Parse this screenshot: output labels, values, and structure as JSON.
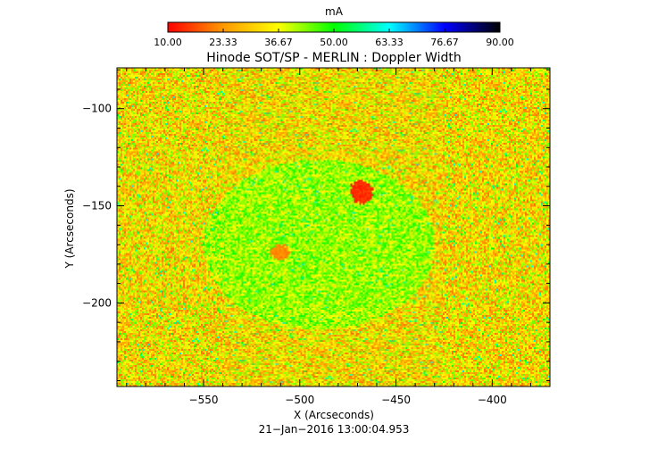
{
  "chart_data": {
    "type": "heatmap",
    "title": "Hinode SOT/SP - MERLIN : Doppler Width",
    "xlabel": "X (Arcseconds)",
    "ylabel": "Y (Arcseconds)",
    "xlim": [
      -595,
      -370
    ],
    "ylim": [
      -243,
      -79
    ],
    "xticks": [
      -550,
      -500,
      -450,
      -400
    ],
    "xtick_labels": [
      "−550",
      "−500",
      "−450",
      "−400"
    ],
    "yticks": [
      -100,
      -150,
      -200
    ],
    "ytick_labels": [
      "−100",
      "−150",
      "−200"
    ],
    "colorbar": {
      "label": "mA",
      "min": 10.0,
      "max": 90.0,
      "ticks": [
        10.0,
        23.33,
        36.67,
        50.0,
        63.33,
        76.67,
        90.0
      ],
      "tick_labels": [
        "10.00",
        "23.33",
        "36.67",
        "50.00",
        "63.33",
        "76.67",
        "90.00"
      ],
      "colors": [
        "#ff0000",
        "#ff9900",
        "#ffff00",
        "#00ff00",
        "#00ffff",
        "#0000ff",
        "#000000"
      ]
    },
    "background_level_range_mA": [
      20,
      45
    ],
    "features": [
      {
        "x": -468,
        "y": -143,
        "value_mA": 12
      },
      {
        "x": -510,
        "y": -174,
        "value_mA": 20
      }
    ],
    "timestamp": "21−Jan−2016 13:00:04.953"
  }
}
